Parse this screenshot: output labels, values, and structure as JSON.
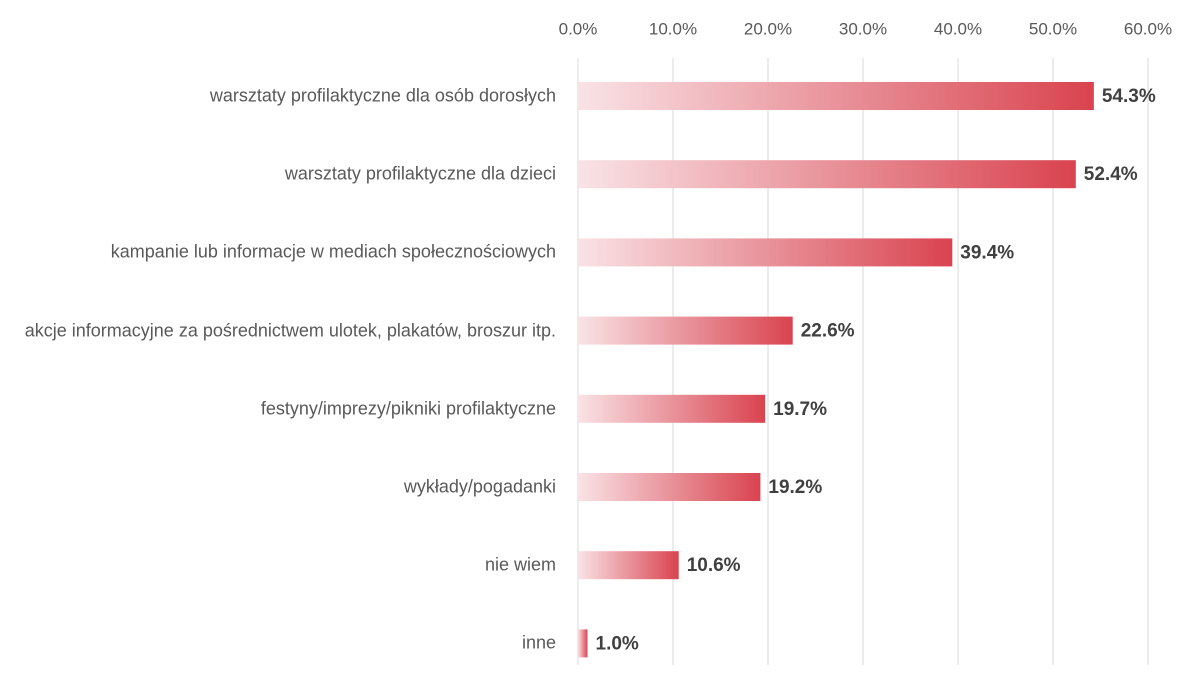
{
  "chart_data": {
    "type": "bar",
    "orientation": "horizontal",
    "categories": [
      "warsztaty profilaktyczne dla osób dorosłych",
      "warsztaty profilaktyczne dla dzieci",
      "kampanie lub informacje w mediach społecznościowych",
      "akcje informacyjne za pośrednictwem ulotek, plakatów, broszur itp.",
      "festyny/imprezy/pikniki profilaktyczne",
      "wykłady/pogadanki",
      "nie wiem",
      "inne"
    ],
    "values": [
      54.3,
      52.4,
      39.4,
      22.6,
      19.7,
      19.2,
      10.6,
      1.0
    ],
    "value_labels": [
      "54.3%",
      "52.4%",
      "39.4%",
      "22.6%",
      "19.7%",
      "19.2%",
      "10.6%",
      "1.0%"
    ],
    "color": "#d9434f",
    "color_start": "#f9e3e6",
    "xlim": [
      0,
      60
    ],
    "xticks": [
      {
        "value": 0,
        "label": "0.0%"
      },
      {
        "value": 10,
        "label": "10.0%"
      },
      {
        "value": 20,
        "label": "20.0%"
      },
      {
        "value": 30,
        "label": "30.0%"
      },
      {
        "value": 40,
        "label": "40.0%"
      },
      {
        "value": 50,
        "label": "50.0%"
      },
      {
        "value": 60,
        "label": "60.0%"
      }
    ],
    "grid": true
  }
}
